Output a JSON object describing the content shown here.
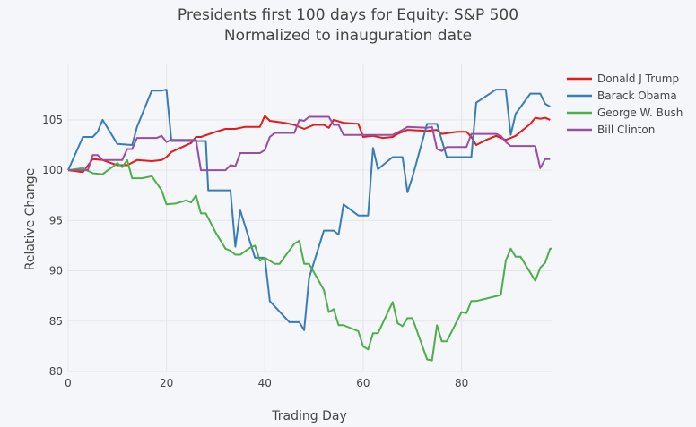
{
  "chart_data": {
    "type": "line",
    "title": "Presidents first 100 days for Equity: S&P 500",
    "subtitle": "Normalized to inauguration date",
    "xlabel": "Trading Day",
    "ylabel": "Relative Change",
    "xlim": [
      0,
      98.5
    ],
    "ylim": [
      80,
      110.5
    ],
    "xticks": [
      0,
      20,
      40,
      60,
      80
    ],
    "yticks": [
      80,
      85,
      90,
      95,
      100,
      105
    ],
    "grid": true,
    "legend_position": "top-right",
    "series": [
      {
        "name": "Donald J Trump",
        "color": "#e41a1c",
        "points": [
          [
            0,
            100.0
          ],
          [
            3,
            99.8
          ],
          [
            5,
            101.1
          ],
          [
            7,
            101.0
          ],
          [
            10,
            100.5
          ],
          [
            12,
            100.5
          ],
          [
            14,
            101.0
          ],
          [
            17,
            100.9
          ],
          [
            19,
            101.0
          ],
          [
            20,
            101.3
          ],
          [
            21,
            101.8
          ],
          [
            25,
            102.7
          ],
          [
            26,
            103.3
          ],
          [
            27,
            103.3
          ],
          [
            30,
            103.8
          ],
          [
            32,
            104.1
          ],
          [
            34,
            104.1
          ],
          [
            36,
            104.3
          ],
          [
            39,
            104.3
          ],
          [
            40,
            105.4
          ],
          [
            41,
            104.9
          ],
          [
            44,
            104.7
          ],
          [
            46,
            104.5
          ],
          [
            48,
            104.1
          ],
          [
            50,
            104.5
          ],
          [
            52,
            104.5
          ],
          [
            53,
            104.2
          ],
          [
            54,
            105.0
          ],
          [
            56,
            104.7
          ],
          [
            59,
            104.6
          ],
          [
            60,
            103.3
          ],
          [
            62,
            103.4
          ],
          [
            64,
            103.2
          ],
          [
            66,
            103.3
          ],
          [
            67,
            103.6
          ],
          [
            69,
            104.0
          ],
          [
            73,
            103.9
          ],
          [
            75,
            104.0
          ],
          [
            76,
            103.6
          ],
          [
            79,
            103.8
          ],
          [
            81,
            103.8
          ],
          [
            82,
            103.3
          ],
          [
            83,
            102.5
          ],
          [
            85,
            103.0
          ],
          [
            87,
            103.4
          ],
          [
            89,
            103.0
          ],
          [
            91,
            103.4
          ],
          [
            94,
            104.6
          ],
          [
            95,
            105.2
          ],
          [
            96,
            105.1
          ],
          [
            97,
            105.2
          ],
          [
            98,
            105.0
          ]
        ]
      },
      {
        "name": "Barack Obama",
        "color": "#377eb8",
        "points": [
          [
            0,
            100.0
          ],
          [
            3,
            103.3
          ],
          [
            5,
            103.3
          ],
          [
            6,
            103.8
          ],
          [
            7,
            105.0
          ],
          [
            10,
            102.6
          ],
          [
            13,
            102.5
          ],
          [
            14,
            104.3
          ],
          [
            17,
            107.9
          ],
          [
            19,
            107.9
          ],
          [
            20,
            108.0
          ],
          [
            21,
            102.9
          ],
          [
            25,
            102.9
          ],
          [
            28,
            102.9
          ],
          [
            28.5,
            98.0
          ],
          [
            33,
            98.0
          ],
          [
            34,
            92.4
          ],
          [
            35,
            96.0
          ],
          [
            38,
            91.3
          ],
          [
            40,
            91.3
          ],
          [
            41,
            87.0
          ],
          [
            45,
            84.9
          ],
          [
            47,
            84.9
          ],
          [
            48,
            84.1
          ],
          [
            49,
            89.3
          ],
          [
            52,
            94.0
          ],
          [
            54,
            94.0
          ],
          [
            55,
            93.6
          ],
          [
            56,
            96.6
          ],
          [
            59,
            95.5
          ],
          [
            61,
            95.5
          ],
          [
            62,
            102.2
          ],
          [
            63,
            100.1
          ],
          [
            66,
            101.3
          ],
          [
            68,
            101.3
          ],
          [
            69,
            97.8
          ],
          [
            70,
            99.3
          ],
          [
            73,
            104.6
          ],
          [
            75,
            104.6
          ],
          [
            77,
            101.3
          ],
          [
            82,
            101.3
          ],
          [
            83,
            106.7
          ],
          [
            87,
            108.0
          ],
          [
            89,
            108.0
          ],
          [
            90,
            103.5
          ],
          [
            91,
            105.6
          ],
          [
            94,
            107.6
          ],
          [
            96,
            107.6
          ],
          [
            97,
            106.6
          ],
          [
            98,
            106.3
          ]
        ]
      },
      {
        "name": "George W. Bush",
        "color": "#4daf4a",
        "points": [
          [
            0,
            100.0
          ],
          [
            3,
            100.2
          ],
          [
            5,
            99.7
          ],
          [
            7,
            99.6
          ],
          [
            10,
            100.7
          ],
          [
            11,
            100.3
          ],
          [
            12,
            101.0
          ],
          [
            13,
            99.2
          ],
          [
            15,
            99.2
          ],
          [
            17,
            99.4
          ],
          [
            19,
            98.0
          ],
          [
            20,
            96.6
          ],
          [
            22,
            96.7
          ],
          [
            24,
            97.0
          ],
          [
            25,
            96.8
          ],
          [
            26,
            97.5
          ],
          [
            27,
            95.7
          ],
          [
            28,
            95.7
          ],
          [
            30,
            93.8
          ],
          [
            32,
            92.2
          ],
          [
            33,
            92.0
          ],
          [
            34,
            91.6
          ],
          [
            35,
            91.6
          ],
          [
            37,
            92.3
          ],
          [
            38,
            92.5
          ],
          [
            39,
            91.0
          ],
          [
            40,
            91.3
          ],
          [
            41,
            91.0
          ],
          [
            42,
            90.7
          ],
          [
            43,
            90.7
          ],
          [
            46,
            92.7
          ],
          [
            47,
            93.0
          ],
          [
            48,
            90.7
          ],
          [
            49,
            90.7
          ],
          [
            52,
            88.1
          ],
          [
            53,
            85.9
          ],
          [
            54,
            86.2
          ],
          [
            55,
            84.6
          ],
          [
            56,
            84.6
          ],
          [
            57,
            84.4
          ],
          [
            59,
            84.0
          ],
          [
            60,
            82.5
          ],
          [
            61,
            82.2
          ],
          [
            62,
            83.8
          ],
          [
            63,
            83.8
          ],
          [
            66,
            86.9
          ],
          [
            67,
            84.8
          ],
          [
            68,
            84.5
          ],
          [
            69,
            85.3
          ],
          [
            70,
            85.3
          ],
          [
            73,
            81.2
          ],
          [
            74,
            81.1
          ],
          [
            75,
            84.6
          ],
          [
            76,
            83.0
          ],
          [
            77,
            83.0
          ],
          [
            80,
            85.9
          ],
          [
            81,
            85.8
          ],
          [
            82,
            87.0
          ],
          [
            83,
            87.0
          ],
          [
            88,
            87.6
          ],
          [
            89,
            91.0
          ],
          [
            90,
            92.2
          ],
          [
            91,
            91.4
          ],
          [
            92,
            91.4
          ],
          [
            95,
            89.0
          ],
          [
            96,
            90.3
          ],
          [
            97,
            90.8
          ],
          [
            98,
            92.2
          ],
          [
            98.5,
            92.2
          ]
        ]
      },
      {
        "name": "Bill Clinton",
        "color": "#984ea3",
        "points": [
          [
            0,
            100.0
          ],
          [
            4,
            100.0
          ],
          [
            5,
            101.5
          ],
          [
            6,
            101.5
          ],
          [
            7,
            101.0
          ],
          [
            8,
            101.0
          ],
          [
            11,
            101.0
          ],
          [
            12,
            102.1
          ],
          [
            13,
            102.1
          ],
          [
            14,
            103.2
          ],
          [
            18,
            103.2
          ],
          [
            19,
            103.4
          ],
          [
            20,
            102.8
          ],
          [
            21,
            103.0
          ],
          [
            26,
            103.0
          ],
          [
            27,
            100.0
          ],
          [
            32,
            100.0
          ],
          [
            33,
            100.5
          ],
          [
            34,
            100.4
          ],
          [
            35,
            101.7
          ],
          [
            39,
            101.7
          ],
          [
            40,
            102.0
          ],
          [
            41,
            103.3
          ],
          [
            42,
            103.7
          ],
          [
            46,
            103.7
          ],
          [
            47,
            105.0
          ],
          [
            48,
            104.9
          ],
          [
            49,
            105.3
          ],
          [
            53,
            105.3
          ],
          [
            54,
            104.5
          ],
          [
            55,
            104.5
          ],
          [
            56,
            103.5
          ],
          [
            60,
            103.5
          ],
          [
            64,
            103.5
          ],
          [
            66,
            103.5
          ],
          [
            68,
            104.0
          ],
          [
            69,
            104.3
          ],
          [
            73,
            104.2
          ],
          [
            74,
            104.3
          ],
          [
            75,
            102.1
          ],
          [
            76,
            101.9
          ],
          [
            77,
            102.3
          ],
          [
            81,
            102.3
          ],
          [
            82,
            103.6
          ],
          [
            87,
            103.6
          ],
          [
            88,
            103.4
          ],
          [
            89,
            102.8
          ],
          [
            90,
            102.4
          ],
          [
            94,
            102.4
          ],
          [
            95,
            102.4
          ],
          [
            96,
            100.2
          ],
          [
            97,
            101.1
          ],
          [
            98,
            101.1
          ]
        ]
      }
    ]
  }
}
